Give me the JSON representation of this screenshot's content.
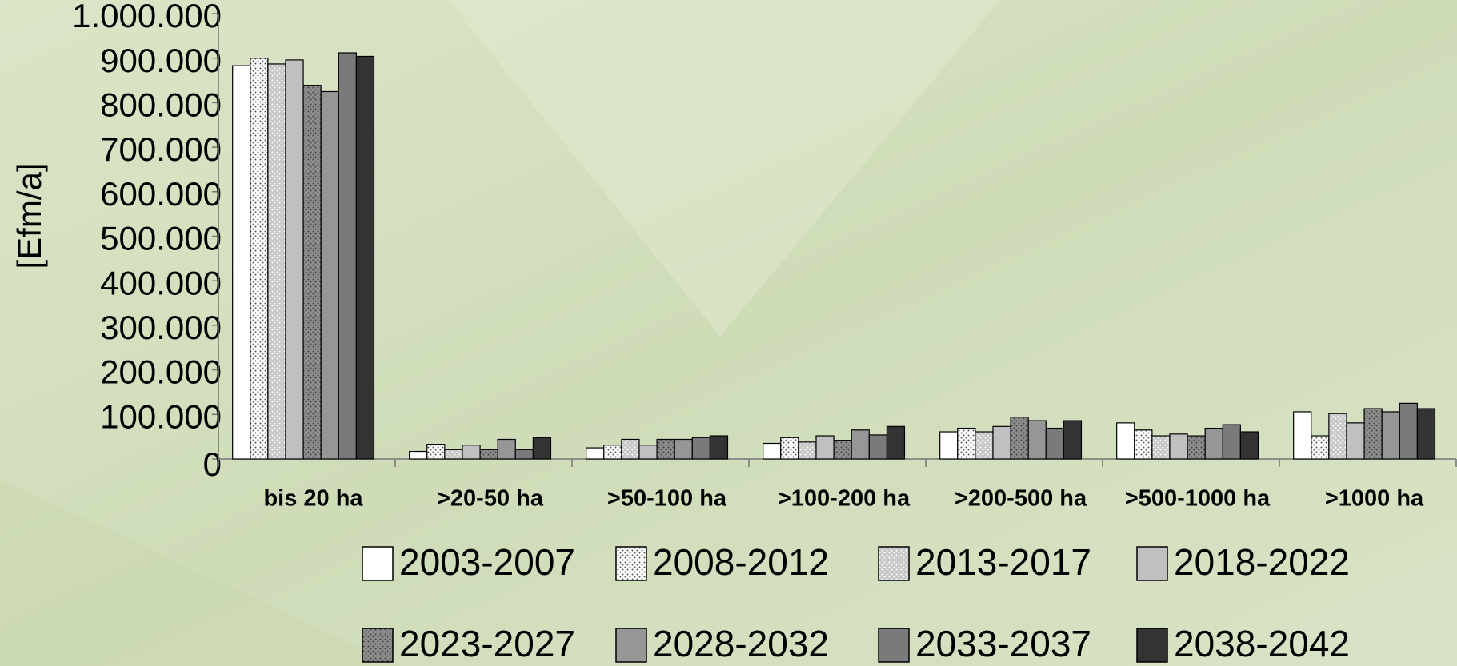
{
  "chart_data": {
    "type": "bar",
    "y_label": "[Efm/a]",
    "categories": [
      "bis 20 ha",
      ">20-50 ha",
      ">50-100 ha",
      ">100-200 ha",
      ">200-500 ha",
      ">500-1000 ha",
      ">1000 ha"
    ],
    "series": [
      {
        "name": "2003-2007",
        "color": "#ffffff",
        "dotted": false,
        "values": [
          883000,
          17000,
          25000,
          35000,
          61000,
          81000,
          106000
        ]
      },
      {
        "name": "2008-2012",
        "color": "#ffffff",
        "dotted": true,
        "values": [
          900000,
          33000,
          31000,
          48000,
          69000,
          65000,
          52000
        ]
      },
      {
        "name": "2013-2017",
        "color": "#c8c8c8",
        "dotted": true,
        "values": [
          887000,
          21000,
          44000,
          38000,
          61000,
          52000,
          102000
        ]
      },
      {
        "name": "2018-2022",
        "color": "#c0c0c0",
        "dotted": false,
        "values": [
          896000,
          31000,
          31000,
          52000,
          73000,
          56000,
          81000
        ]
      },
      {
        "name": "2023-2027",
        "color": "#8c8c8c",
        "dotted": true,
        "values": [
          839000,
          21000,
          44000,
          42000,
          94000,
          52000,
          113000
        ]
      },
      {
        "name": "2028-2032",
        "color": "#969696",
        "dotted": false,
        "values": [
          825000,
          44000,
          44000,
          65000,
          86000,
          69000,
          106000
        ]
      },
      {
        "name": "2033-2037",
        "color": "#7a7a7a",
        "dotted": false,
        "values": [
          912000,
          21000,
          48000,
          54000,
          69000,
          77000,
          125000
        ]
      },
      {
        "name": "2038-2042",
        "color": "#333333",
        "dotted": false,
        "values": [
          904000,
          48000,
          52000,
          73000,
          86000,
          61000,
          113000
        ]
      }
    ],
    "ylim": [
      0,
      1000000
    ],
    "yticks": [
      0,
      {
        "value": 100000,
        "label": "100.000"
      },
      {
        "value": 200000,
        "label": "200.000"
      },
      {
        "value": 300000,
        "label": "300.000"
      },
      {
        "value": 400000,
        "label": "400.000"
      },
      {
        "value": 500000,
        "label": "500.000"
      },
      {
        "value": 600000,
        "label": "600.000"
      },
      {
        "value": 700000,
        "label": "700.000"
      },
      {
        "value": 800000,
        "label": "800.000"
      },
      {
        "value": 900000,
        "label": "900.000"
      },
      {
        "value": 1000000,
        "label": "1.000.000"
      }
    ],
    "legend": "bottom"
  }
}
